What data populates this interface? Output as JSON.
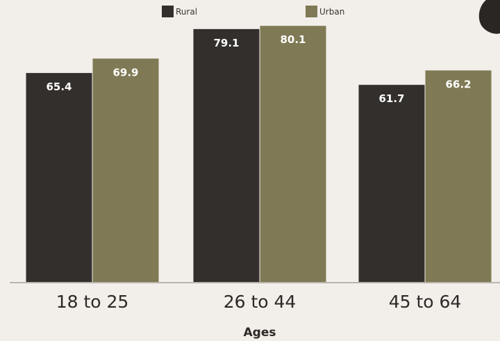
{
  "chart_data": {
    "type": "bar",
    "categories": [
      "18 to 25",
      "26 to 44",
      "45 to 64"
    ],
    "series": [
      {
        "name": "Rural",
        "values": [
          65.4,
          79.1,
          61.7
        ],
        "labels": [
          "65.4",
          "79.1",
          "61.7"
        ],
        "color": "#332f2c"
      },
      {
        "name": "Urban",
        "values": [
          69.9,
          80.1,
          66.2
        ],
        "labels": [
          "69.9",
          "80.1",
          "66.2"
        ],
        "color": "#7f7a55"
      }
    ],
    "title": "",
    "xlabel": "Ages",
    "ylabel": "",
    "ylim": [
      0,
      86
    ],
    "grid": false,
    "legend_position": "top-center",
    "colors": {
      "background": "#f2efea",
      "baseline": "#b9b5ae",
      "corner_shape": "#2a2624"
    }
  }
}
